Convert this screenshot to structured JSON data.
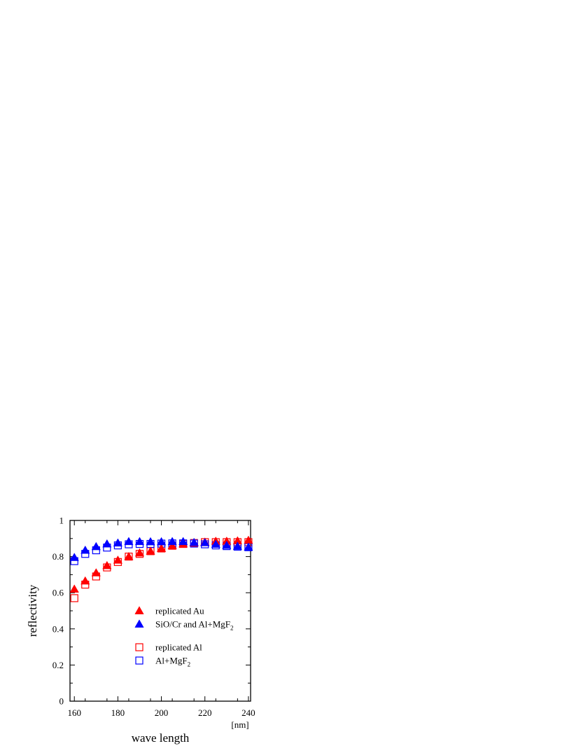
{
  "chart_data": {
    "type": "scatter",
    "xlabel": "wave length",
    "xunit": "[nm]",
    "ylabel": "reflectivity",
    "xlim": [
      158,
      241
    ],
    "ylim": [
      0,
      1
    ],
    "xticks": [
      160,
      180,
      200,
      220,
      240
    ],
    "xtick_labels": [
      "160",
      "180",
      "200",
      "220",
      "240"
    ],
    "yticks": [
      0,
      0.2,
      0.4,
      0.6,
      0.8,
      1
    ],
    "ytick_labels": [
      "0",
      "0.2",
      "0.4",
      "0.6",
      "0.8",
      "1"
    ],
    "grid": false,
    "legend_position": "bottom-right inside",
    "x": [
      160,
      165,
      170,
      175,
      180,
      185,
      190,
      195,
      200,
      205,
      210,
      215,
      220,
      225,
      230,
      235,
      240
    ],
    "series": [
      {
        "name": "replicated Au",
        "marker": "filled-triangle",
        "color": "#ff0000",
        "values": [
          0.62,
          0.665,
          0.71,
          0.75,
          0.78,
          0.8,
          0.82,
          0.83,
          0.845,
          0.86,
          0.87,
          0.875,
          0.88,
          0.885,
          0.885,
          0.887,
          0.89
        ]
      },
      {
        "name": "SiO/Cr and Al+MgF",
        "name_subscript": "2",
        "marker": "filled-triangle",
        "color": "#0000ff",
        "values": [
          0.795,
          0.835,
          0.855,
          0.87,
          0.875,
          0.883,
          0.883,
          0.882,
          0.882,
          0.883,
          0.883,
          0.878,
          0.877,
          0.868,
          0.862,
          0.857,
          0.852
        ]
      },
      {
        "name": "replicated Al",
        "marker": "open-square",
        "color": "#ff0000",
        "values": [
          0.57,
          0.645,
          0.69,
          0.74,
          0.77,
          0.8,
          0.815,
          0.83,
          0.845,
          0.86,
          0.87,
          0.875,
          0.88,
          0.88,
          0.88,
          0.88,
          0.88
        ]
      },
      {
        "name": "Al+MgF",
        "name_subscript": "2",
        "marker": "open-square",
        "color": "#0000ff",
        "values": [
          0.775,
          0.815,
          0.835,
          0.85,
          0.862,
          0.868,
          0.87,
          0.87,
          0.872,
          0.873,
          0.873,
          0.872,
          0.868,
          0.862,
          0.858,
          0.855,
          0.852
        ]
      }
    ]
  }
}
